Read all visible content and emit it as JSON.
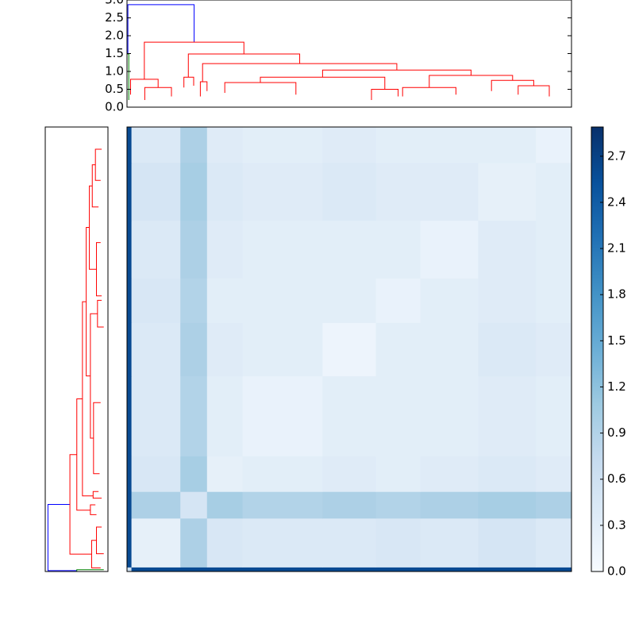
{
  "chart_data": {
    "type": "clustermap",
    "leaf_range": [
      0,
      100
    ],
    "ylim": [
      0,
      3.0
    ],
    "yticks": [
      {
        "value": 0,
        "label": "0.0"
      },
      0.5,
      {
        "value": 1,
        "label": "1.0"
      },
      1.5,
      {
        "value": 2,
        "label": "2.0"
      },
      2.5,
      {
        "value": 3,
        "label": "3.0"
      }
    ],
    "links": [
      {
        "x": [
          0.2,
          0.2,
          15.1,
          15.1
        ],
        "y": [
          1.49,
          2.87,
          2.87,
          1.82
        ],
        "color": "#0000ff"
      },
      {
        "x": [
          0,
          0,
          0.4,
          0.4
        ],
        "y": [
          0.3,
          1.49,
          1.49,
          0.2
        ],
        "color": "#008000"
      },
      {
        "x": [
          3.9,
          3.9,
          26.3,
          26.3
        ],
        "y": [
          0.78,
          1.82,
          1.82,
          1.49
        ],
        "color": "#ff0000"
      },
      {
        "x": [
          13.8,
          13.8,
          38.85,
          38.85
        ],
        "y": [
          0.84,
          1.49,
          1.49,
          1.22
        ],
        "color": "#ff0000"
      },
      {
        "x": [
          17,
          17,
          60.7,
          60.7
        ],
        "y": [
          0.71,
          1.22,
          1.22,
          1.04
        ],
        "color": "#ff0000"
      },
      {
        "x": [
          44,
          44,
          77.4,
          77.4
        ],
        "y": [
          0.84,
          1.04,
          1.04,
          0.89
        ],
        "color": "#ff0000"
      },
      {
        "x": [
          0.8,
          0.8,
          7,
          7
        ],
        "y": [
          0.35,
          0.78,
          0.78,
          0.55
        ],
        "color": "#ff0000"
      },
      {
        "x": [
          4,
          4,
          10,
          10
        ],
        "y": [
          0.2,
          0.55,
          0.55,
          0.3
        ],
        "color": "#ff0000"
      },
      {
        "x": [
          12.8,
          12.8,
          15,
          15
        ],
        "y": [
          0.55,
          0.84,
          0.84,
          0.6
        ],
        "color": "#ff0000"
      },
      {
        "x": [
          16.5,
          16.5,
          18,
          18
        ],
        "y": [
          0.3,
          0.71,
          0.71,
          0.45
        ],
        "color": "#ff0000"
      },
      {
        "x": [
          30,
          30,
          58,
          58
        ],
        "y": [
          0.69,
          0.84,
          0.84,
          0.5
        ],
        "color": "#ff0000"
      },
      {
        "x": [
          22,
          22,
          38,
          38
        ],
        "y": [
          0.4,
          0.69,
          0.69,
          0.35
        ],
        "color": "#ff0000"
      },
      {
        "x": [
          55,
          55,
          61,
          61
        ],
        "y": [
          0.2,
          0.5,
          0.5,
          0.3
        ],
        "color": "#ff0000"
      },
      {
        "x": [
          68,
          68,
          86.75,
          86.75
        ],
        "y": [
          0.55,
          0.89,
          0.89,
          0.75
        ],
        "color": "#ff0000"
      },
      {
        "x": [
          82,
          82,
          91.5,
          91.5
        ],
        "y": [
          0.45,
          0.75,
          0.75,
          0.6
        ],
        "color": "#ff0000"
      },
      {
        "x": [
          88,
          88,
          95,
          95
        ],
        "y": [
          0.35,
          0.6,
          0.6,
          0.3
        ],
        "color": "#ff0000"
      },
      {
        "x": [
          62,
          62,
          74,
          74
        ],
        "y": [
          0.3,
          0.55,
          0.55,
          0.35
        ],
        "color": "#ff0000"
      }
    ],
    "block_bounds": [
      0,
      1,
      12,
      18,
      26,
      44,
      56,
      66,
      79,
      92,
      100
    ],
    "matrix": [
      [
        0.6,
        2.6,
        2.6,
        2.6,
        2.6,
        2.6,
        2.6,
        2.6,
        2.6,
        2.6
      ],
      [
        2.6,
        0.25,
        0.95,
        0.45,
        0.4,
        0.4,
        0.45,
        0.4,
        0.5,
        0.4
      ],
      [
        2.6,
        0.95,
        0.5,
        1.0,
        0.9,
        0.95,
        0.9,
        0.95,
        1.0,
        0.95
      ],
      [
        2.6,
        0.45,
        1.0,
        0.25,
        0.3,
        0.35,
        0.3,
        0.35,
        0.4,
        0.35
      ],
      [
        2.6,
        0.4,
        0.9,
        0.3,
        0.2,
        0.3,
        0.3,
        0.3,
        0.35,
        0.3
      ],
      [
        2.6,
        0.4,
        0.95,
        0.35,
        0.3,
        0.15,
        0.3,
        0.3,
        0.4,
        0.35
      ],
      [
        2.6,
        0.45,
        0.9,
        0.3,
        0.3,
        0.3,
        0.2,
        0.3,
        0.35,
        0.3
      ],
      [
        2.6,
        0.4,
        0.95,
        0.35,
        0.3,
        0.3,
        0.3,
        0.2,
        0.35,
        0.3
      ],
      [
        2.6,
        0.5,
        1.0,
        0.4,
        0.35,
        0.4,
        0.35,
        0.35,
        0.25,
        0.3
      ],
      [
        2.6,
        0.4,
        0.95,
        0.35,
        0.3,
        0.35,
        0.3,
        0.3,
        0.3,
        0.2
      ]
    ],
    "clim": [
      0,
      2.89
    ],
    "colormap": [
      "#f7fbff",
      "#deebf7",
      "#c6dbef",
      "#9ecae1",
      "#6baed6",
      "#4292c6",
      "#2171b5",
      "#08519c",
      "#08306b"
    ],
    "cticks": [
      {
        "value": 0,
        "label": "0.0"
      },
      0.3,
      0.6,
      0.9,
      1.2,
      1.5,
      1.8,
      2.1,
      2.4,
      2.7
    ]
  }
}
